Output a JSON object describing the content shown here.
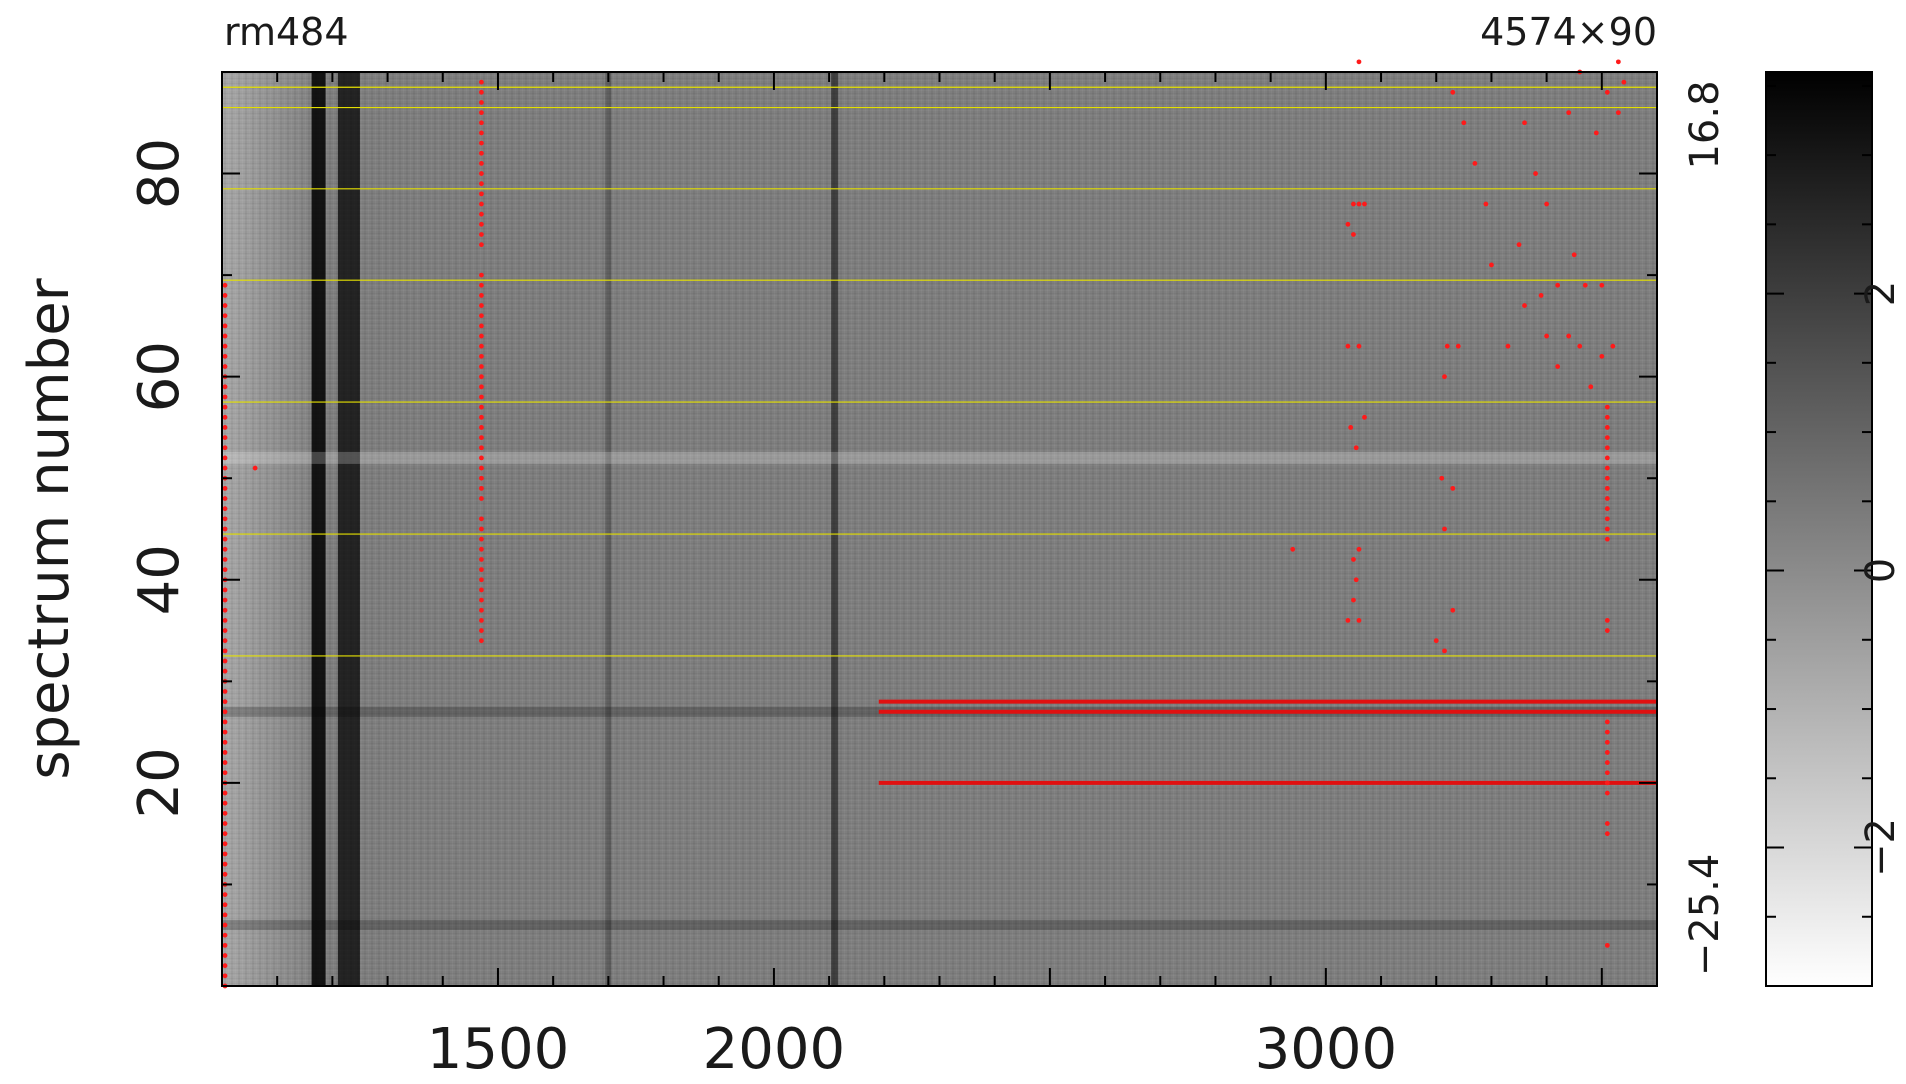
{
  "chart_data": {
    "type": "heatmap",
    "title_left": "rm484",
    "title_right": "4574×90",
    "ylabel": "spectrum number",
    "xlim": [
      1000,
      3600
    ],
    "ylim": [
      0,
      90
    ],
    "x_tick_labels": [
      "1500",
      "2000",
      "3000"
    ],
    "y_tick_labels": [
      "20",
      "40",
      "60",
      "80"
    ],
    "right_labels": {
      "upper": "16.8",
      "lower": "−25.4"
    },
    "colorbar": {
      "range": [
        -3,
        3.6
      ],
      "tick_labels": [
        "−2",
        "0",
        "2"
      ],
      "colormap": "white-to-black"
    },
    "dark_columns": [
      1175,
      1230,
      1700,
      2110
    ],
    "bright_rows": [
      52
    ],
    "dark_rows": [
      6,
      27
    ],
    "yellow_lines": [
      32.5,
      44.5,
      57.5,
      69.5,
      78.5,
      86.5,
      88.5
    ],
    "red_lines": [
      {
        "y": 28,
        "x0": 2190,
        "x1": 3600
      },
      {
        "y": 27,
        "x0": 2190,
        "x1": 3600
      },
      {
        "y": 20,
        "x0": 2190,
        "x1": 3600
      }
    ],
    "red_columns": [
      {
        "x": 1000,
        "y_ranges": [
          [
            0,
            69
          ]
        ]
      },
      {
        "x": 1470,
        "y_ranges": [
          [
            34,
            46
          ],
          [
            48,
            70
          ],
          [
            73,
            88
          ]
        ]
      },
      {
        "x": 3510,
        "y_ranges": [
          [
            4,
            4
          ],
          [
            15,
            16
          ],
          [
            19,
            26
          ],
          [
            35,
            36
          ],
          [
            44,
            57
          ]
        ]
      }
    ],
    "red_points": [
      [
        1470,
        89
      ],
      [
        1060,
        51
      ],
      [
        3060,
        91
      ],
      [
        3040,
        63
      ],
      [
        3060,
        63
      ],
      [
        3045,
        55
      ],
      [
        3055,
        53
      ],
      [
        3070,
        56
      ],
      [
        3040,
        36
      ],
      [
        3060,
        36
      ],
      [
        3050,
        38
      ],
      [
        3055,
        40
      ],
      [
        3050,
        42
      ],
      [
        3060,
        43
      ],
      [
        3040,
        75
      ],
      [
        3050,
        77
      ],
      [
        3060,
        77
      ],
      [
        3070,
        77
      ],
      [
        3050,
        74
      ],
      [
        2940,
        43
      ],
      [
        3200,
        34
      ],
      [
        3215,
        33
      ],
      [
        3230,
        37
      ],
      [
        3215,
        45
      ],
      [
        3230,
        49
      ],
      [
        3210,
        50
      ],
      [
        3215,
        60
      ],
      [
        3220,
        63
      ],
      [
        3240,
        63
      ],
      [
        3330,
        63
      ],
      [
        3350,
        73
      ],
      [
        3360,
        67
      ],
      [
        3390,
        68
      ],
      [
        3400,
        64
      ],
      [
        3420,
        61
      ],
      [
        3440,
        64
      ],
      [
        3460,
        63
      ],
      [
        3480,
        59
      ],
      [
        3500,
        62
      ],
      [
        3520,
        63
      ],
      [
        3530,
        91
      ],
      [
        3540,
        89
      ],
      [
        3500,
        69
      ],
      [
        3470,
        69
      ],
      [
        3450,
        72
      ],
      [
        3420,
        69
      ],
      [
        3400,
        77
      ],
      [
        3380,
        80
      ],
      [
        3360,
        85
      ],
      [
        3440,
        86
      ],
      [
        3460,
        90
      ],
      [
        3490,
        84
      ],
      [
        3510,
        88
      ],
      [
        3530,
        86
      ],
      [
        3230,
        88
      ],
      [
        3250,
        85
      ],
      [
        3270,
        81
      ],
      [
        3290,
        77
      ],
      [
        3300,
        71
      ]
    ]
  }
}
